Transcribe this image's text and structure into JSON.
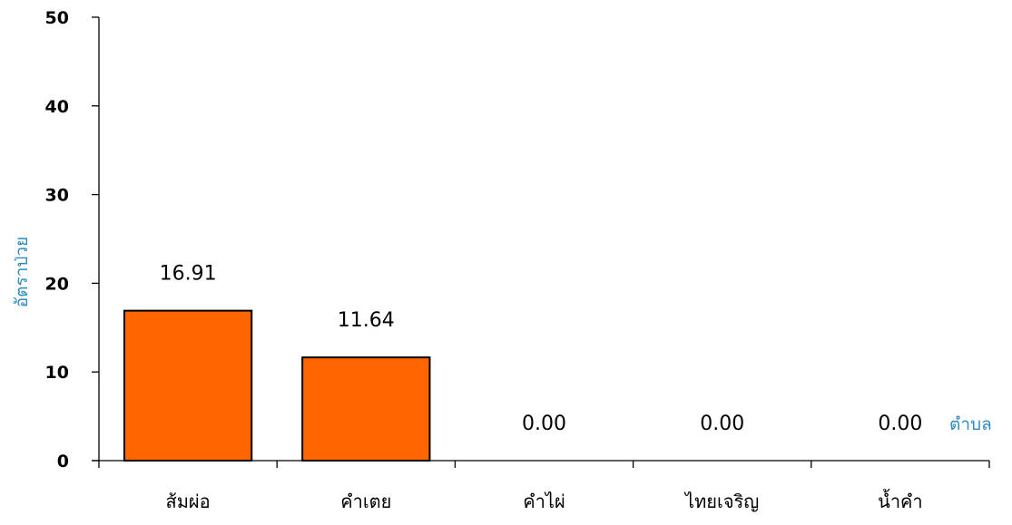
{
  "chart_data": {
    "type": "bar",
    "title": "",
    "xlabel": "ตำบล",
    "ylabel": "อัตราป่วย",
    "categories": [
      "ส้มผ่อ",
      "คำเตย",
      "คำไผ่",
      "ไทยเจริญ",
      "น้ำคำ"
    ],
    "values": [
      16.91,
      11.64,
      0.0,
      0.0,
      0.0
    ],
    "value_labels": [
      "16.91",
      "11.64",
      "0.00",
      "0.00",
      "0.00"
    ],
    "ylim": [
      0,
      50
    ],
    "yticks": [
      0,
      10,
      20,
      30,
      40,
      50
    ],
    "grid": false,
    "legend": "none",
    "colors": {
      "bar_fill": "#ff6600",
      "bar_stroke": "#000000",
      "axis": "#000000",
      "axis_title": "#2e8bc0"
    }
  }
}
